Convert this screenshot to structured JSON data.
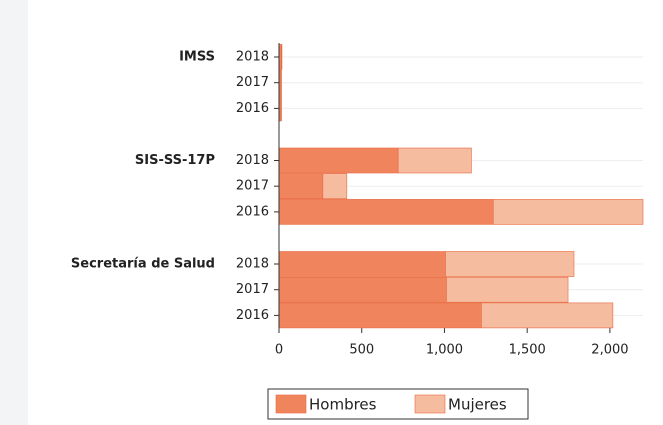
{
  "chart_data": {
    "type": "stacked-barh",
    "groups": [
      "IMSS",
      "SIS-SS-17P",
      "Secretaría de Salud"
    ],
    "categories": [
      "2018",
      "2017",
      "2016",
      "2018",
      "2017",
      "2016",
      "2018",
      "2017",
      "2016"
    ],
    "series": [
      {
        "name": "Hombres",
        "color": "#f0845d",
        "values": [
          15,
          12,
          12,
          720,
          265,
          1295,
          1006,
          1012,
          1223
        ]
      },
      {
        "name": "Mujeres",
        "color": "#f5bca0",
        "values": [
          3,
          3,
          3,
          443,
          145,
          905,
          777,
          735,
          795
        ]
      }
    ],
    "xlim": [
      0,
      2200
    ],
    "xticks": [
      0,
      500,
      {
        "value": 1000,
        "label": "1,000"
      },
      {
        "value": 1500,
        "label": "1,500"
      },
      {
        "value": 2000,
        "label": "2,000"
      }
    ],
    "grid": true,
    "legend": "bottom"
  }
}
